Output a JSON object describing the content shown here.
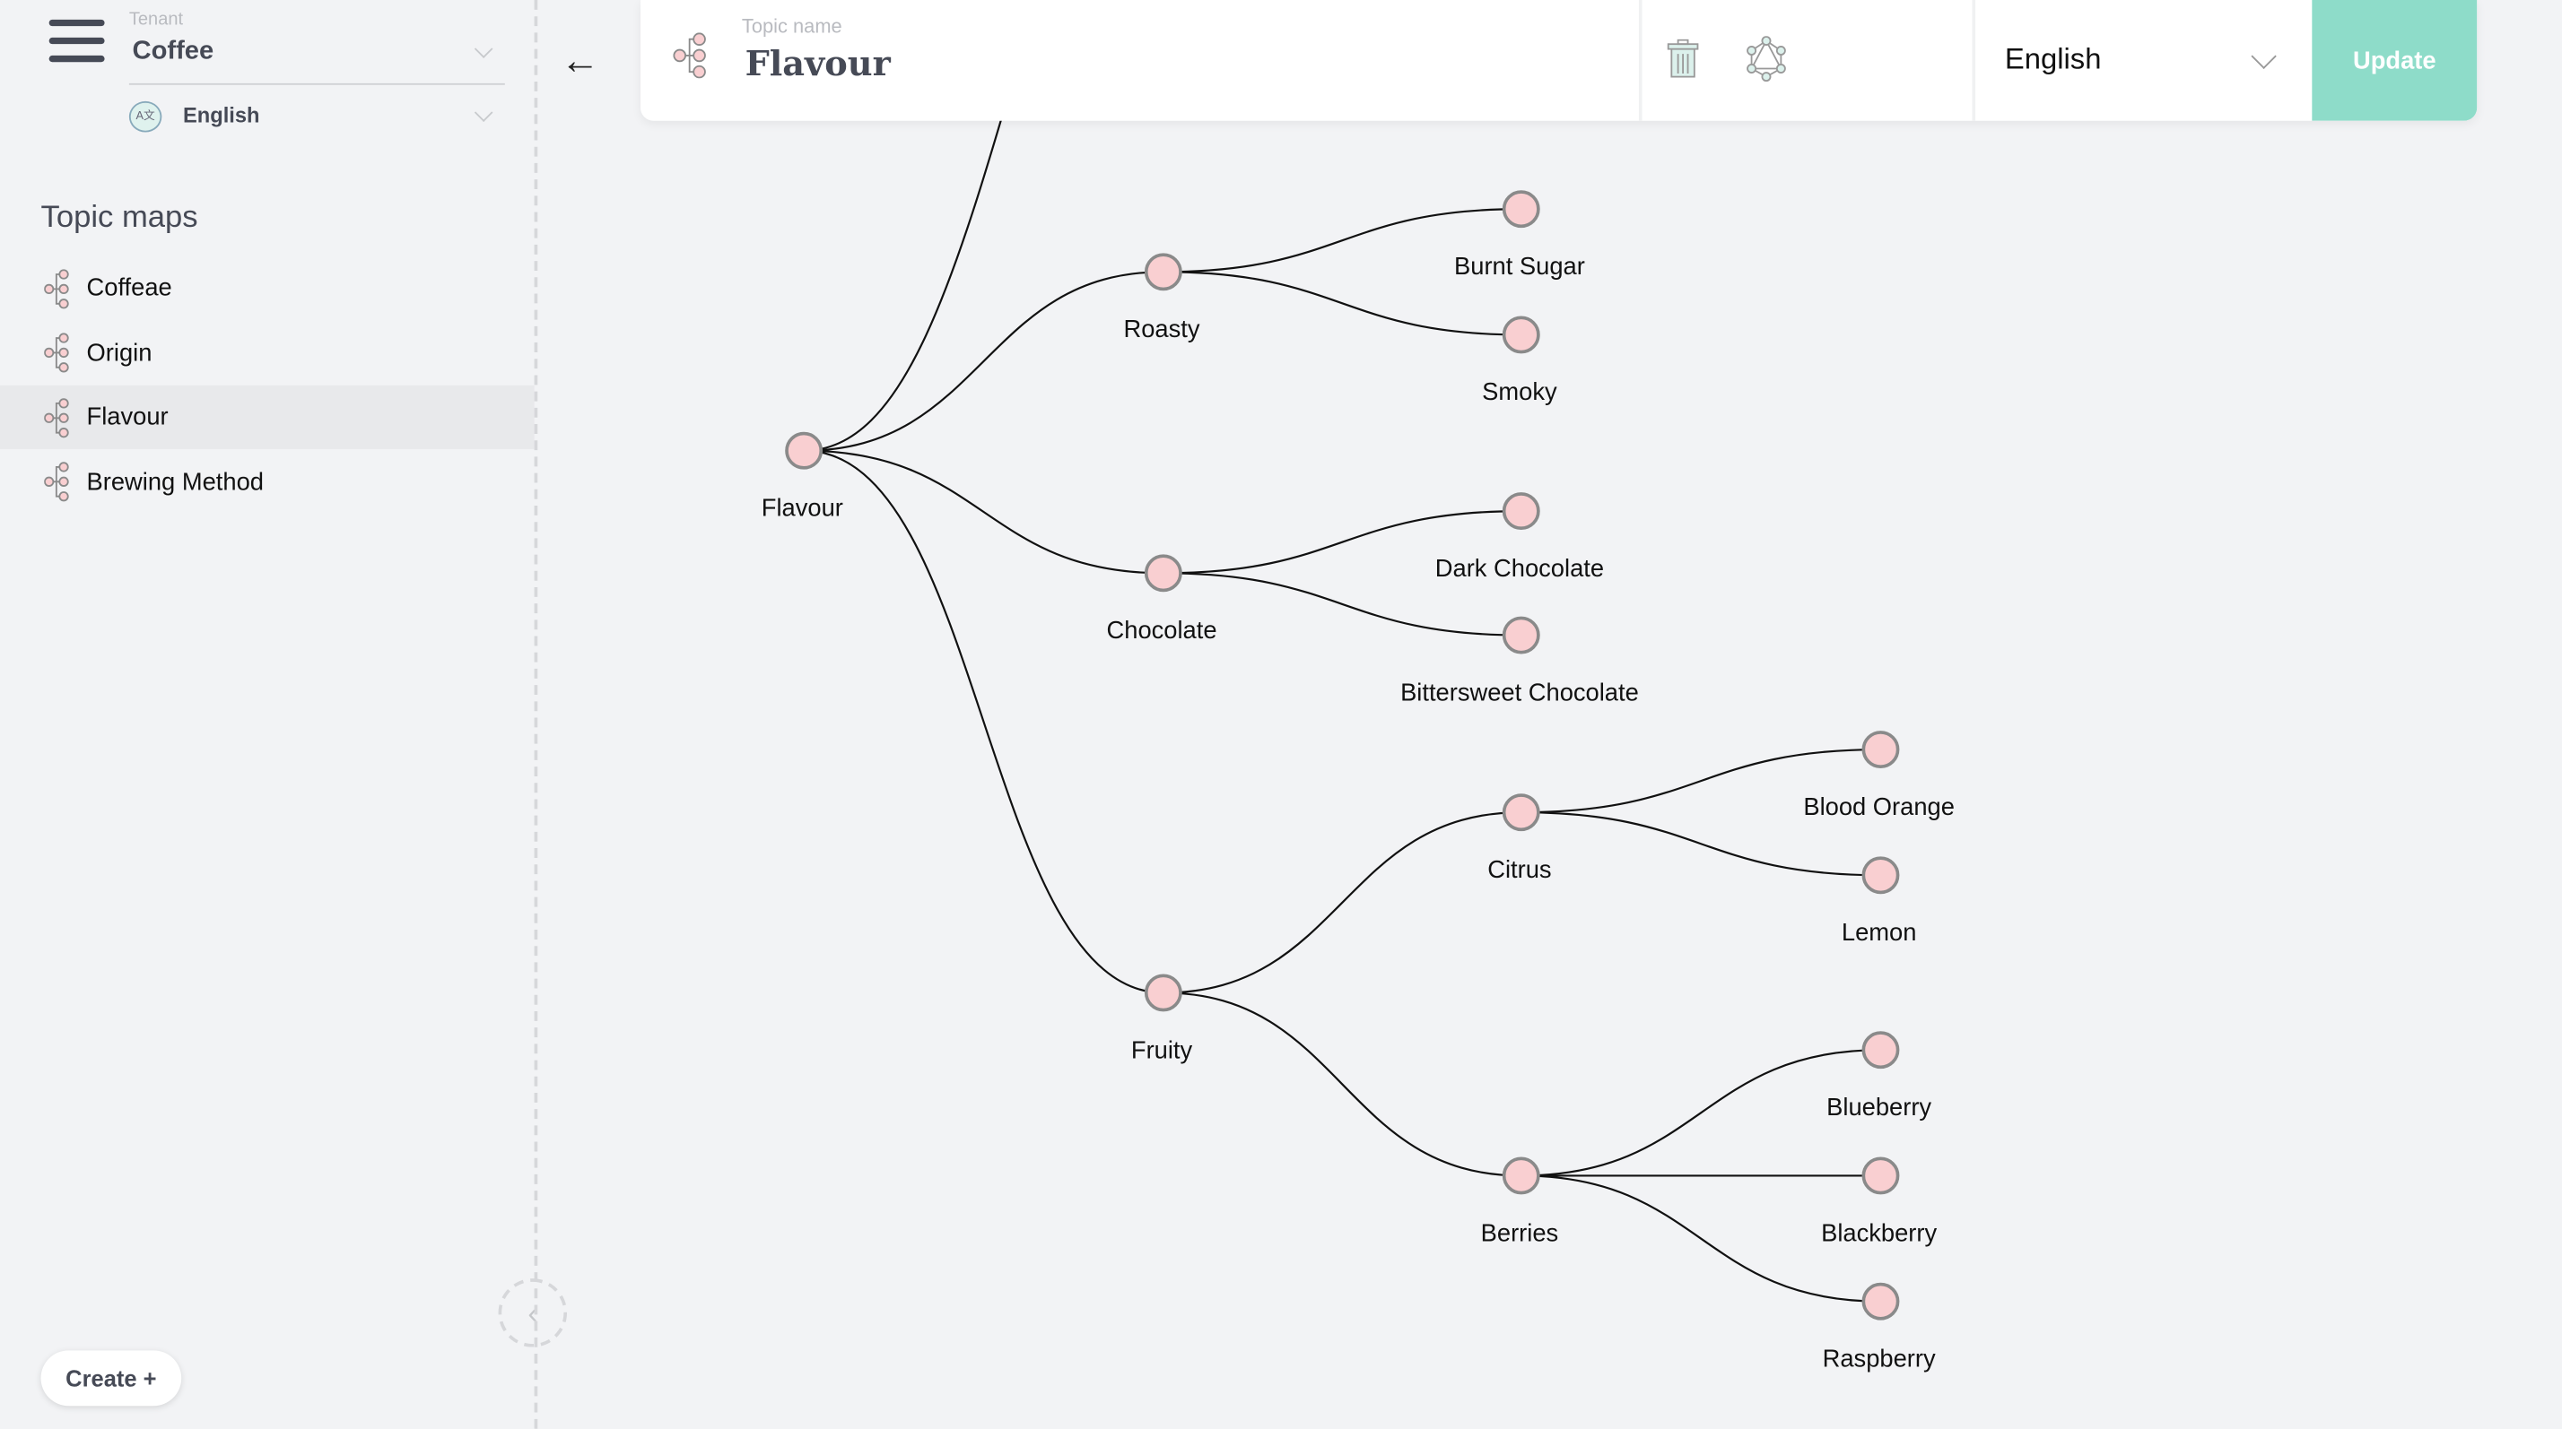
{
  "sidebar": {
    "tenant_label": "Tenant",
    "tenant": "Coffee",
    "language": "English",
    "language_icon_text": "A文",
    "section_title": "Topic maps",
    "items": [
      {
        "label": "Coffeae"
      },
      {
        "label": "Origin"
      },
      {
        "label": "Flavour",
        "active": true
      },
      {
        "label": "Brewing Method"
      }
    ],
    "create_label": "Create +"
  },
  "header": {
    "topic_name_label": "Topic name",
    "topic_name": "Flavour",
    "language": "English",
    "update_label": "Update",
    "icons": [
      "topic-map-icon",
      "trash-icon",
      "graphql-icon"
    ]
  },
  "colors": {
    "accent": "#8edcc9",
    "node_fill": "#f9cfd1",
    "node_stroke": "#8a8a8a",
    "text_dark": "#464a56"
  },
  "tree": {
    "nodes": [
      {
        "id": "flavour",
        "label": "Flavour",
        "parent": null,
        "depth": 0
      },
      {
        "id": "roasty",
        "label": "Roasty",
        "parent": "flavour",
        "depth": 1
      },
      {
        "id": "burnt",
        "label": "Burnt Sugar",
        "parent": "roasty",
        "depth": 2
      },
      {
        "id": "smoky",
        "label": "Smoky",
        "parent": "roasty",
        "depth": 2
      },
      {
        "id": "choc",
        "label": "Chocolate",
        "parent": "flavour",
        "depth": 1
      },
      {
        "id": "dark",
        "label": "Dark Chocolate",
        "parent": "choc",
        "depth": 2
      },
      {
        "id": "bitter",
        "label": "Bittersweet Chocolate",
        "parent": "choc",
        "depth": 2
      },
      {
        "id": "fruity",
        "label": "Fruity",
        "parent": "flavour",
        "depth": 1
      },
      {
        "id": "citrus",
        "label": "Citrus",
        "parent": "fruity",
        "depth": 2
      },
      {
        "id": "blood",
        "label": "Blood Orange",
        "parent": "citrus",
        "depth": 3
      },
      {
        "id": "lemon",
        "label": "Lemon",
        "parent": "citrus",
        "depth": 3
      },
      {
        "id": "berries",
        "label": "Berries",
        "parent": "fruity",
        "depth": 2
      },
      {
        "id": "blue",
        "label": "Blueberry",
        "parent": "berries",
        "depth": 3
      },
      {
        "id": "black",
        "label": "Blackberry",
        "parent": "berries",
        "depth": 3
      },
      {
        "id": "rasp",
        "label": "Raspberry",
        "parent": "berries",
        "depth": 3
      }
    ]
  }
}
